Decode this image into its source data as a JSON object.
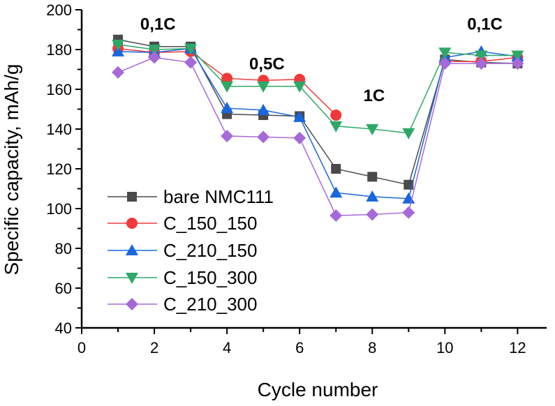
{
  "chart_data": {
    "type": "line",
    "xlabel": "Cycle number",
    "ylabel": "Specific capacity, mAh/g",
    "xlim": [
      0,
      12.8
    ],
    "ylim": [
      40,
      200
    ],
    "xticks": [
      0,
      2,
      4,
      6,
      8,
      10,
      12
    ],
    "yticks": [
      40,
      60,
      80,
      100,
      120,
      140,
      160,
      180,
      200
    ],
    "grid": false,
    "legend_position": "bottom-left",
    "x": [
      1,
      2,
      3,
      4,
      5,
      6,
      7,
      8,
      9,
      10,
      11,
      12
    ],
    "series": [
      {
        "name": "bare NMC111",
        "color": "#4a4a4a",
        "marker": "square",
        "values": [
          185,
          181.5,
          181.5,
          147.5,
          147,
          146.5,
          120,
          116,
          112,
          175,
          173.5,
          173
        ]
      },
      {
        "name": "C_150_150",
        "color": "#f03a3a",
        "marker": "circle",
        "values": [
          180.5,
          178.5,
          179,
          165.5,
          164.5,
          165,
          147,
          null,
          null,
          174,
          174,
          176
        ]
      },
      {
        "name": "C_210_150",
        "color": "#1a66dd",
        "marker": "triangle-up",
        "values": [
          179,
          178.5,
          180.5,
          150.5,
          149.5,
          146,
          108,
          106,
          105,
          176,
          179,
          176.5
        ]
      },
      {
        "name": "C_150_300",
        "color": "#2ea866",
        "marker": "triangle-down",
        "values": [
          182.5,
          180,
          180.5,
          161.5,
          161.5,
          161.5,
          141.5,
          140,
          138,
          178.5,
          177,
          177
        ]
      },
      {
        "name": "C_210_300",
        "color": "#a66ad8",
        "marker": "diamond",
        "values": [
          168.5,
          176,
          173.5,
          136.5,
          136,
          135.5,
          96.5,
          97,
          98,
          173,
          173,
          173
        ]
      }
    ],
    "annotations": [
      {
        "text": "0,1C",
        "x": 2.1,
        "y": 190
      },
      {
        "text": "0,5C",
        "x": 5.1,
        "y": 170
      },
      {
        "text": "1C",
        "x": 8.05,
        "y": 154
      },
      {
        "text": "0,1C",
        "x": 11.1,
        "y": 190
      }
    ]
  }
}
